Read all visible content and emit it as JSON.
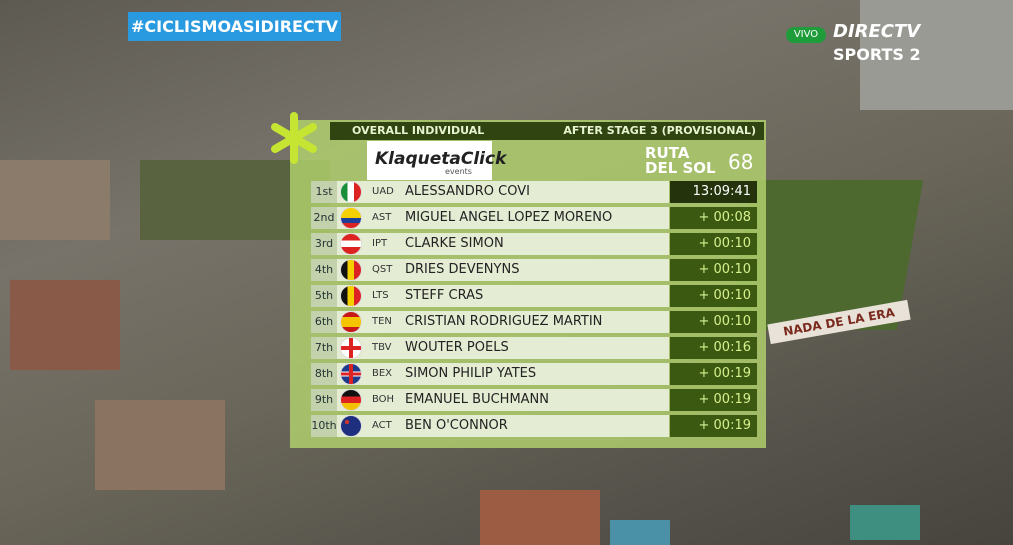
{
  "hashtag": "#CICLISMOASIDIRECTV",
  "broadcaster": {
    "live": "VIVO",
    "name": "DIRECTV",
    "channel": "SPORTS 2"
  },
  "background_sign": "NADA DE LA ERA",
  "panel": {
    "title": "OVERALL INDIVIDUAL",
    "stage": "AFTER STAGE 3 (PROVISIONAL)",
    "sponsor": {
      "name": "KlaquetaClick",
      "tagline": "events"
    },
    "race": {
      "line1": "RUTA",
      "line2": "DEL SOL",
      "edition": "68"
    },
    "rows": [
      {
        "position": "1st",
        "team": "UAD",
        "rider": "ALESSANDRO COVI",
        "time": "13:09:41"
      },
      {
        "position": "2nd",
        "team": "AST",
        "rider": "MIGUEL ANGEL LOPEZ MORENO",
        "time": "+ 00:08"
      },
      {
        "position": "3rd",
        "team": "IPT",
        "rider": "CLARKE SIMON",
        "time": "+ 00:10"
      },
      {
        "position": "4th",
        "team": "QST",
        "rider": "DRIES DEVENYNS",
        "time": "+ 00:10"
      },
      {
        "position": "5th",
        "team": "LTS",
        "rider": "STEFF CRAS",
        "time": "+ 00:10"
      },
      {
        "position": "6th",
        "team": "TEN",
        "rider": "CRISTIAN RODRIGUEZ MARTIN",
        "time": "+ 00:10"
      },
      {
        "position": "7th",
        "team": "TBV",
        "rider": "WOUTER POELS",
        "time": "+ 00:16"
      },
      {
        "position": "8th",
        "team": "BEX",
        "rider": "SIMON PHILIP YATES",
        "time": "+ 00:19"
      },
      {
        "position": "9th",
        "team": "BOH",
        "rider": "EMANUEL BUCHMANN",
        "time": "+ 00:19"
      },
      {
        "position": "10th",
        "team": "ACT",
        "rider": "BEN O'CONNOR",
        "time": "+ 00:19"
      }
    ]
  }
}
